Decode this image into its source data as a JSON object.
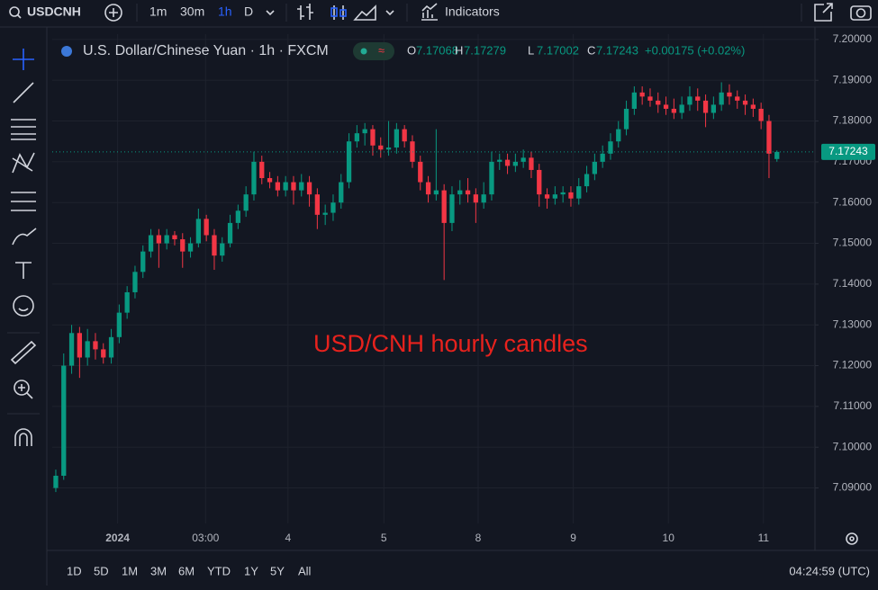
{
  "toolbar": {
    "symbol": "USDCNH",
    "intervals": [
      "1m",
      "30m",
      "1h",
      "D"
    ],
    "indicators": "Indicators"
  },
  "chart_data": {
    "type": "candlestick",
    "title": "U.S. Dollar/Chinese Yuan · 1h · FXCM",
    "legend_labels": [
      "O",
      "H",
      "L",
      "C"
    ],
    "change": "+0.00175 (+0.02%)",
    "annotation": "USD/CNH hourly candles",
    "up_color": "#089981",
    "down_color": "#f23645",
    "annotation_color": "#e8221d",
    "grid": true,
    "open": [
      7.09,
      7.093,
      7.12,
      7.128,
      7.122,
      7.126,
      7.124,
      7.122,
      7.127,
      7.133,
      7.138,
      7.143,
      7.148,
      7.152,
      7.15,
      7.152,
      7.151,
      7.148,
      7.15,
      7.156,
      7.152,
      7.147,
      7.15,
      7.155,
      7.158,
      7.162,
      7.17,
      7.166,
      7.165,
      7.163,
      7.165,
      7.163,
      7.165,
      7.162,
      7.157,
      7.1575,
      7.16,
      7.165,
      7.175,
      7.177,
      7.178,
      7.174,
      7.173,
      7.1735,
      7.178,
      7.175,
      7.17,
      7.165,
      7.162,
      7.163,
      7.155,
      7.162,
      7.163,
      7.162,
      7.16,
      7.162,
      7.17,
      7.1705,
      7.169,
      7.17,
      7.171,
      7.168,
      7.162,
      7.161,
      7.162,
      7.1625,
      7.161,
      7.164,
      7.167,
      7.17,
      7.172,
      7.175,
      7.178,
      7.183,
      7.187,
      7.186,
      7.185,
      7.184,
      7.183,
      7.182,
      7.184,
      7.186,
      7.185,
      7.182,
      7.184,
      7.187,
      7.186,
      7.185,
      7.184,
      7.183,
      7.18,
      7.17068
    ],
    "high": [
      7.0945,
      7.123,
      7.13,
      7.1295,
      7.129,
      7.128,
      7.1255,
      7.129,
      7.135,
      7.1395,
      7.1445,
      7.1495,
      7.1535,
      7.1535,
      7.1535,
      7.153,
      7.1525,
      7.1515,
      7.1585,
      7.157,
      7.1535,
      7.1515,
      7.157,
      7.1595,
      7.164,
      7.1725,
      7.1715,
      7.1675,
      7.1665,
      7.1665,
      7.1665,
      7.167,
      7.1665,
      7.1635,
      7.1595,
      7.162,
      7.167,
      7.177,
      7.179,
      7.1795,
      7.179,
      7.176,
      7.18,
      7.1795,
      7.179,
      7.1765,
      7.1715,
      7.1665,
      7.178,
      7.1645,
      7.164,
      7.1655,
      7.166,
      7.1635,
      7.165,
      7.1725,
      7.172,
      7.172,
      7.172,
      7.173,
      7.1725,
      7.1695,
      7.1635,
      7.164,
      7.164,
      7.164,
      7.166,
      7.169,
      7.172,
      7.174,
      7.177,
      7.18,
      7.185,
      7.1885,
      7.1885,
      7.188,
      7.187,
      7.186,
      7.1855,
      7.186,
      7.1885,
      7.188,
      7.1865,
      7.186,
      7.1895,
      7.189,
      7.1875,
      7.1865,
      7.1855,
      7.1845,
      7.1815,
      7.17279
    ],
    "low": [
      7.089,
      7.092,
      7.118,
      7.117,
      7.12,
      7.1215,
      7.1205,
      7.1205,
      7.1255,
      7.1315,
      7.1365,
      7.1415,
      7.1465,
      7.144,
      7.1485,
      7.1495,
      7.144,
      7.1465,
      7.149,
      7.1505,
      7.1435,
      7.1455,
      7.149,
      7.1535,
      7.1565,
      7.1605,
      7.1645,
      7.1635,
      7.1615,
      7.1615,
      7.1595,
      7.1615,
      7.159,
      7.1535,
      7.1545,
      7.1555,
      7.1585,
      7.1635,
      7.1735,
      7.174,
      7.1715,
      7.171,
      7.1715,
      7.172,
      7.1735,
      7.1685,
      7.163,
      7.16,
      7.1605,
      7.141,
      7.153,
      7.1595,
      7.16,
      7.155,
      7.1585,
      7.1605,
      7.168,
      7.167,
      7.1675,
      7.1685,
      7.166,
      7.159,
      7.1585,
      7.1595,
      7.16,
      7.159,
      7.1595,
      7.1625,
      7.1655,
      7.1685,
      7.1705,
      7.1735,
      7.1765,
      7.1815,
      7.184,
      7.1835,
      7.182,
      7.1815,
      7.1805,
      7.1805,
      7.1825,
      7.1825,
      7.1785,
      7.1805,
      7.1825,
      7.184,
      7.183,
      7.1815,
      7.181,
      7.178,
      7.166,
      7.17002
    ],
    "close": [
      7.093,
      7.12,
      7.128,
      7.122,
      7.126,
      7.124,
      7.122,
      7.127,
      7.133,
      7.138,
      7.143,
      7.148,
      7.152,
      7.15,
      7.152,
      7.151,
      7.148,
      7.15,
      7.156,
      7.152,
      7.147,
      7.15,
      7.155,
      7.158,
      7.162,
      7.17,
      7.166,
      7.165,
      7.163,
      7.165,
      7.163,
      7.165,
      7.162,
      7.157,
      7.1575,
      7.16,
      7.165,
      7.175,
      7.177,
      7.178,
      7.174,
      7.173,
      7.1735,
      7.178,
      7.175,
      7.17,
      7.165,
      7.162,
      7.163,
      7.155,
      7.162,
      7.163,
      7.162,
      7.16,
      7.162,
      7.17,
      7.1705,
      7.169,
      7.17,
      7.171,
      7.168,
      7.162,
      7.161,
      7.162,
      7.1625,
      7.161,
      7.164,
      7.167,
      7.17,
      7.172,
      7.175,
      7.178,
      7.183,
      7.187,
      7.186,
      7.185,
      7.184,
      7.183,
      7.182,
      7.184,
      7.186,
      7.185,
      7.182,
      7.184,
      7.187,
      7.186,
      7.185,
      7.184,
      7.183,
      7.18,
      7.172,
      7.17243
    ],
    "xlim": [
      -0.45,
      95.8
    ],
    "xticks": [
      {
        "value": 7.8,
        "label": "2024"
      },
      {
        "value": 18.9,
        "label": "03:00"
      },
      {
        "value": 29.3,
        "label": "4"
      },
      {
        "value": 41.4,
        "label": "5"
      },
      {
        "value": 53.3,
        "label": "8"
      },
      {
        "value": 65.3,
        "label": "9"
      },
      {
        "value": 77.3,
        "label": "10"
      },
      {
        "value": 89.3,
        "label": "11"
      }
    ],
    "ylim": [
      7.0813,
      7.2013
    ],
    "yticks": [
      {
        "value": 7.09,
        "label": "7.09000"
      },
      {
        "value": 7.1,
        "label": "7.10000"
      },
      {
        "value": 7.11,
        "label": "7.11000"
      },
      {
        "value": 7.12,
        "label": "7.12000"
      },
      {
        "value": 7.13,
        "label": "7.13000"
      },
      {
        "value": 7.14,
        "label": "7.14000"
      },
      {
        "value": 7.15,
        "label": "7.15000"
      },
      {
        "value": 7.16,
        "label": "7.16000"
      },
      {
        "value": 7.17,
        "label": "7.17000"
      },
      {
        "value": 7.18,
        "label": "7.18000"
      },
      {
        "value": 7.19,
        "label": "7.19000"
      },
      {
        "value": 7.2,
        "label": "7.20000"
      }
    ]
  },
  "footer": {
    "ranges": [
      "1D",
      "5D",
      "1M",
      "3M",
      "6M",
      "YTD",
      "1Y",
      "5Y",
      "All"
    ],
    "clock": "04:24:59 (UTC)"
  }
}
